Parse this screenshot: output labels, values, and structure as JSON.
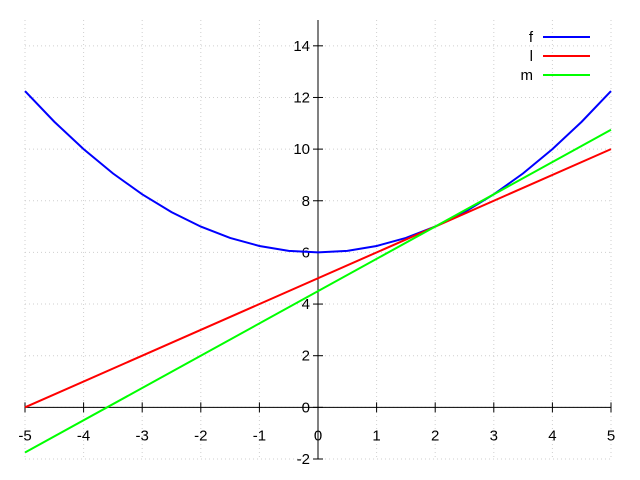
{
  "chart_data": {
    "type": "line",
    "title": "",
    "xlabel": "",
    "ylabel": "",
    "xlim": [
      -5,
      5
    ],
    "ylim": [
      -2,
      15
    ],
    "xticks": [
      -5,
      -4,
      -3,
      -2,
      -1,
      0,
      1,
      2,
      3,
      4,
      5
    ],
    "yticks": [
      -2,
      0,
      2,
      4,
      6,
      8,
      10,
      12,
      14
    ],
    "grid": true,
    "legend_position": "top-right",
    "series": [
      {
        "name": "f",
        "color": "#0000ff",
        "x": [
          -5,
          -4.5,
          -4,
          -3.5,
          -3,
          -2.5,
          -2,
          -1.5,
          -1,
          -0.5,
          0,
          0.5,
          1,
          1.5,
          2,
          2.5,
          3,
          3.5,
          4,
          4.5,
          5
        ],
        "y": [
          12.25,
          11.06,
          10,
          9.06,
          8.25,
          7.56,
          7,
          6.56,
          6.25,
          6.06,
          6,
          6.06,
          6.25,
          6.56,
          7,
          7.56,
          8.25,
          9.06,
          10,
          11.06,
          12.25
        ]
      },
      {
        "name": "l",
        "color": "#ff0000",
        "x": [
          -5,
          5
        ],
        "y": [
          0,
          10
        ]
      },
      {
        "name": "m",
        "color": "#00ff00",
        "x": [
          -5,
          5
        ],
        "y": [
          -1.75,
          10.75
        ]
      }
    ]
  }
}
